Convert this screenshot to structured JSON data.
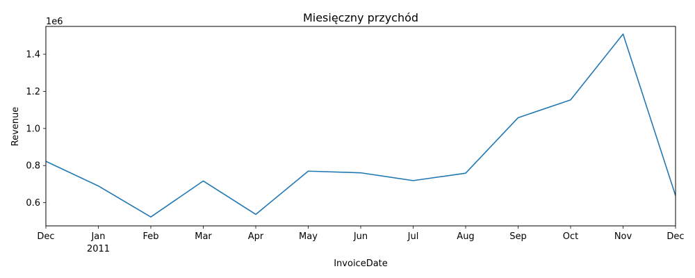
{
  "chart_data": {
    "type": "line",
    "title": "Miesięczny przychód",
    "xlabel": "InvoiceDate",
    "ylabel": "Revenue",
    "offset_label": "1e6",
    "x": [
      "2010-12",
      "2011-01",
      "2011-02",
      "2011-03",
      "2011-04",
      "2011-05",
      "2011-06",
      "2011-07",
      "2011-08",
      "2011-09",
      "2011-10",
      "2011-11",
      "2011-12"
    ],
    "x_tick_labels": [
      "Dec",
      "Jan",
      "Feb",
      "Mar",
      "Apr",
      "May",
      "Jun",
      "Jul",
      "Aug",
      "Sep",
      "Oct",
      "Nov",
      "Dec"
    ],
    "x_year_label": "2011",
    "y_ticks": [
      0.6,
      0.8,
      1.0,
      1.2,
      1.4
    ],
    "y_tick_labels": [
      "0.6",
      "0.8",
      "1.0",
      "1.2",
      "1.4"
    ],
    "ylim": [
      0.475,
      1.55
    ],
    "series": [
      {
        "values": [
          0.823,
          0.69,
          0.523,
          0.717,
          0.537,
          0.77,
          0.761,
          0.719,
          0.759,
          1.058,
          1.154,
          1.509,
          0.638
        ],
        "color": "#1f77b4"
      }
    ],
    "grid": false
  }
}
